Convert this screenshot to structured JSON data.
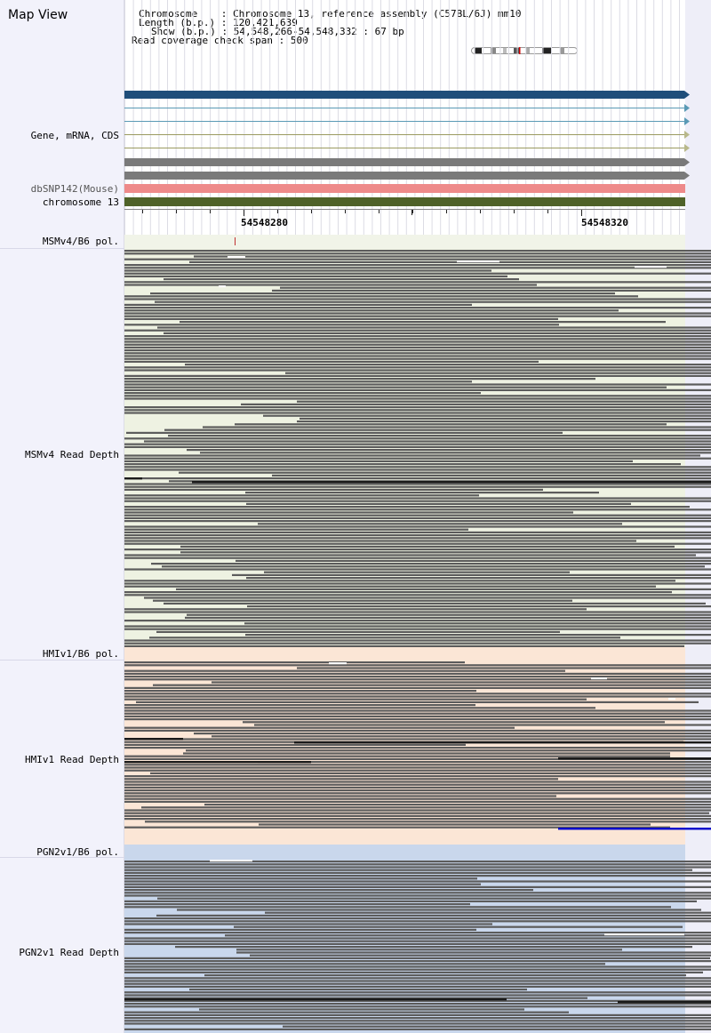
{
  "app": {
    "title": "Map View"
  },
  "header": {
    "chromosome_label": "Chromosome",
    "chromosome_value": "Chromosome 13, reference assembly (C57BL/6J) mm10",
    "length_label": "Length (b.p.)",
    "length_value": "120,421,639",
    "show_label": "Show (b.p.)",
    "show_value": "54,548,266-54,548,332 : 67 bp",
    "span_label": "Read coverage check span",
    "span_value": "500"
  },
  "tracks": {
    "gene": "Gene, mRNA, CDS",
    "dbsnp": "dbSNP142(Mouse)",
    "chromosome": "chromosome 13",
    "msm_pol": "MSMv4/B6 pol.",
    "msm_depth": "MSMv4 Read Depth",
    "hmi_pol": "HMIv1/B6 pol.",
    "hmi_depth": "HMIv1 Read Depth",
    "pgn_pol": "PGN2v1/B6 pol.",
    "pgn_depth": "PGN2v1 Read Depth"
  },
  "ruler": {
    "tick1": "54548280",
    "tick2": "54548320"
  },
  "colors": {
    "sidebar": "#f2f2fb",
    "gene_bar": "#1f4e7a",
    "mrna_line": "#5a9ab5",
    "cds_line": "#9a9a60",
    "gray_bar": "#7a7a7a",
    "snp": "#ee8a8a",
    "chromosome": "#4f6228",
    "read": "#5c5c5c",
    "read_dark": "#1a1a1a",
    "msm_bg": "#eef2e2",
    "hmi_bg": "#fbe6d6",
    "pgn_bg": "#c9d7ec",
    "blue_read": "#0000cc"
  }
}
